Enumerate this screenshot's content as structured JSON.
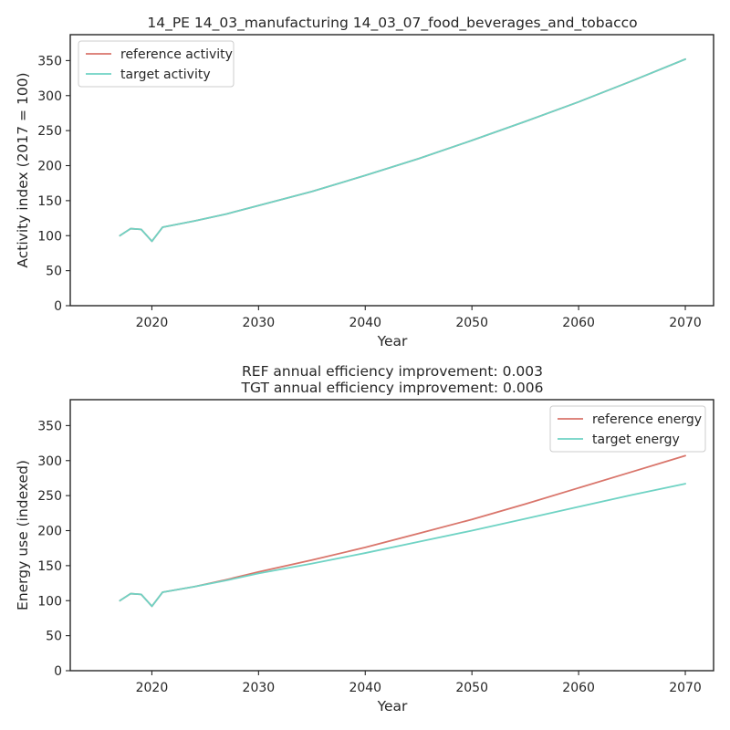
{
  "colors": {
    "reference": "#d9756b",
    "target": "#6fd3c4",
    "axis": "#262626",
    "background": "#ffffff"
  },
  "chart_data": [
    {
      "type": "line",
      "title": "14_PE 14_03_manufacturing 14_03_07_food_beverages_and_tobacco",
      "title_lines": [
        "14_PE 14_03_manufacturing 14_03_07_food_beverages_and_tobacco"
      ],
      "xlabel": "Year",
      "ylabel": "Activity index (2017 = 100)",
      "xlim": [
        2012.35,
        2072.65
      ],
      "ylim": [
        0,
        387
      ],
      "xticks": [
        2020,
        2030,
        2040,
        2050,
        2060,
        2070
      ],
      "yticks": [
        0,
        50,
        100,
        150,
        200,
        250,
        300,
        350
      ],
      "grid": false,
      "legend": "top-left",
      "series": [
        {
          "name": "reference activity",
          "color_key": "reference",
          "x": [
            2017,
            2018,
            2019,
            2020,
            2021,
            2024,
            2027,
            2030,
            2035,
            2040,
            2045,
            2050,
            2055,
            2060,
            2065,
            2070
          ],
          "values": [
            100,
            110,
            109,
            92,
            112,
            121,
            131,
            143,
            163,
            186,
            210,
            236,
            263,
            291,
            321,
            352
          ]
        },
        {
          "name": "target activity",
          "color_key": "target",
          "x": [
            2017,
            2018,
            2019,
            2020,
            2021,
            2024,
            2027,
            2030,
            2035,
            2040,
            2045,
            2050,
            2055,
            2060,
            2065,
            2070
          ],
          "values": [
            100,
            110,
            109,
            92,
            112,
            121,
            131,
            143,
            163,
            186,
            210,
            236,
            263,
            291,
            321,
            352
          ]
        }
      ]
    },
    {
      "type": "line",
      "title": "REF annual efficiency improvement: 0.003\nTGT annual efficiency improvement: 0.006",
      "title_lines": [
        "REF annual efficiency improvement: 0.003",
        "TGT annual efficiency improvement: 0.006"
      ],
      "xlabel": "Year",
      "ylabel": "Energy use (indexed)",
      "xlim": [
        2012.35,
        2072.65
      ],
      "ylim": [
        0,
        387
      ],
      "xticks": [
        2020,
        2030,
        2040,
        2050,
        2060,
        2070
      ],
      "yticks": [
        0,
        50,
        100,
        150,
        200,
        250,
        300,
        350
      ],
      "grid": false,
      "legend": "top-right",
      "series": [
        {
          "name": "reference energy",
          "color_key": "reference",
          "x": [
            2017,
            2018,
            2019,
            2020,
            2021,
            2024,
            2027,
            2030,
            2035,
            2040,
            2045,
            2050,
            2055,
            2060,
            2065,
            2070
          ],
          "values": [
            100,
            110,
            109,
            92,
            112,
            120,
            130,
            141,
            158,
            176,
            196,
            216,
            238,
            261,
            284,
            307
          ]
        },
        {
          "name": "target energy",
          "color_key": "target",
          "x": [
            2017,
            2018,
            2019,
            2020,
            2021,
            2024,
            2027,
            2030,
            2035,
            2040,
            2045,
            2050,
            2055,
            2060,
            2065,
            2070
          ],
          "values": [
            100,
            110,
            109,
            92,
            112,
            120,
            129,
            139,
            153,
            168,
            184,
            200,
            217,
            234,
            251,
            267
          ]
        }
      ]
    }
  ]
}
